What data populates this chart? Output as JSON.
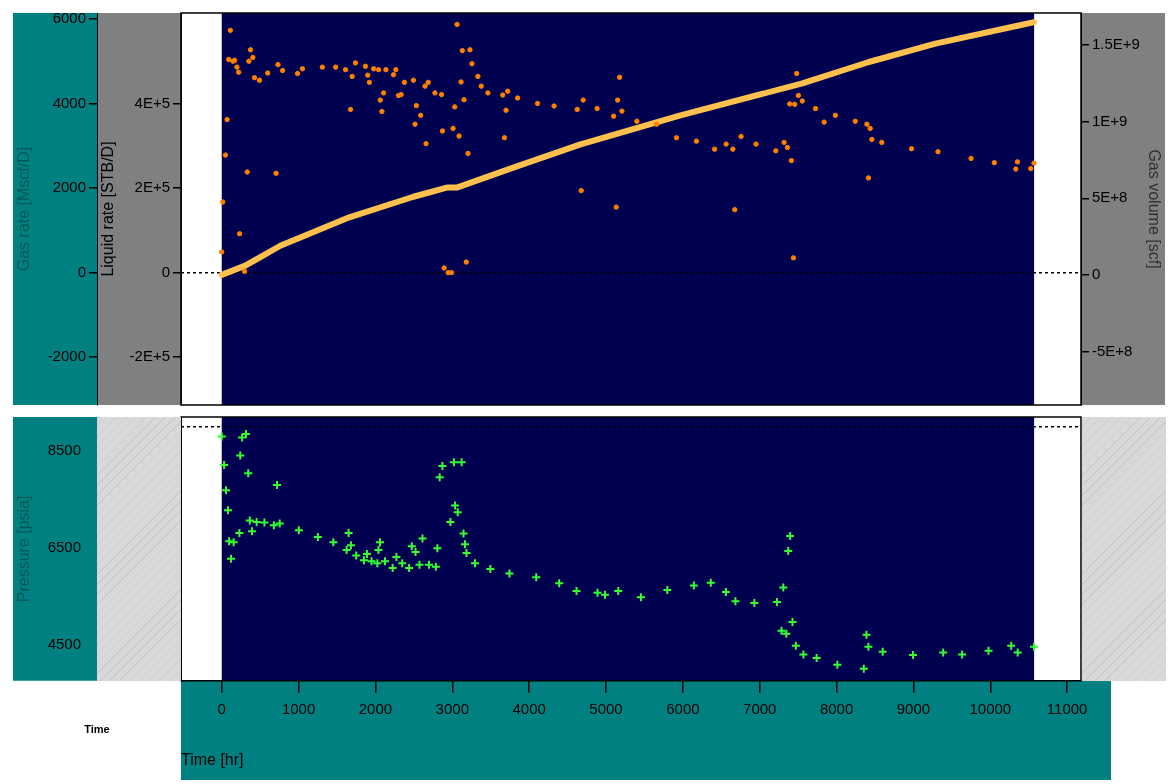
{
  "chart_data": [
    {
      "type": "scatter",
      "xlim": [
        -530,
        11180
      ],
      "ylim": [
        -3130,
        6140
      ],
      "yticks": [
        -2000,
        0,
        2000,
        4000,
        6000
      ],
      "ylabel": "Gas rate [Mscf/D]",
      "y3lim": [
        -313000,
        614000
      ],
      "y3ticks": [
        {
          "value": -200000,
          "label": "-2E+5"
        },
        0,
        {
          "value": 200000,
          "label": "2E+5"
        },
        {
          "value": 400000,
          "label": "4E+5"
        }
      ],
      "y3label": "Liquid rate [STB/D]",
      "y2lim": [
        -850000000,
        1710000000
      ],
      "y2ticks": [
        {
          "value": -500000000,
          "label": "-5E+8"
        },
        0,
        {
          "value": 500000000,
          "label": "5E+8"
        },
        {
          "value": 1000000000,
          "label": "1E+9"
        },
        {
          "value": 1500000000,
          "label": "1.5E+9"
        }
      ],
      "y2label": "Gas volume [scf]",
      "tick_labels": "y",
      "grid": false,
      "legend": false,
      "bands": [
        {
          "axis": "x",
          "from": 0,
          "to": 10570,
          "color": "#000050"
        }
      ],
      "ref_lines": [
        {
          "axis": "y",
          "value": 0,
          "color": "#000000",
          "line_style": "dotted"
        }
      ],
      "series": [
        {
          "type": "scatter",
          "marker": "circle",
          "color": "#ff8000",
          "x": [
            0,
            13,
            48,
            70,
            90,
            112,
            146,
            168,
            198,
            220,
            233,
            297,
            332,
            353,
            375,
            405,
            426,
            491,
            598,
            707,
            732,
            792,
            986,
            1050,
            1309,
            1482,
            1611,
            1676,
            1697,
            1740,
            1870,
            1899,
            1921,
            1977,
            2041,
            2063,
            2084,
            2106,
            2136,
            2235,
            2265,
            2300,
            2335,
            2377,
            2494,
            2515,
            2532,
            2588,
            2645,
            2658,
            2687,
            2774,
            2860,
            2872,
            2894,
            2946,
            2989,
            3010,
            3032,
            3062,
            3088,
            3114,
            3131,
            3152,
            3182,
            3204,
            3230,
            3256,
            3333,
            3376,
            3463,
            3656,
            3678,
            3699,
            3721,
            3850,
            4109,
            4324,
            4625,
            4677,
            4703,
            4884,
            5099,
            5133,
            5151,
            5177,
            5207,
            5401,
            5659,
            5917,
            6176,
            6413,
            6563,
            6650,
            6675,
            6757,
            6951,
            7209,
            7317,
            7360,
            7390,
            7412,
            7438,
            7455,
            7481,
            7503,
            7554,
            7726,
            7838,
            7984,
            8243,
            8394,
            8415,
            8437,
            8459,
            8588,
            8975,
            9319,
            9750,
            10052,
            10332,
            10353,
            10526,
            10568
          ],
          "values": [
            490,
            1670,
            2780,
            3620,
            5040,
            5730,
            5000,
            5020,
            4860,
            4740,
            920,
            30,
            2380,
            5000,
            5270,
            5090,
            4610,
            4550,
            4720,
            2350,
            4920,
            4780,
            4710,
            4820,
            4860,
            4860,
            4800,
            3860,
            4640,
            4960,
            4880,
            4670,
            4500,
            4820,
            4800,
            4080,
            3810,
            4250,
            4800,
            4680,
            4800,
            4190,
            4210,
            4500,
            4550,
            3510,
            3950,
            3720,
            4410,
            3050,
            4500,
            4250,
            4210,
            3350,
            110,
            0,
            0,
            3410,
            3920,
            5870,
            3230,
            4510,
            5250,
            4090,
            250,
            2820,
            5270,
            4940,
            4640,
            4410,
            4250,
            4200,
            3190,
            3840,
            4290,
            4130,
            4000,
            3940,
            3860,
            1940,
            4080,
            3880,
            3700,
            1550,
            4080,
            4620,
            3820,
            3580,
            3510,
            3190,
            3110,
            2920,
            3040,
            2920,
            1490,
            3220,
            3040,
            2880,
            3080,
            2960,
            3990,
            2650,
            350,
            3980,
            4710,
            4190,
            4060,
            3880,
            3560,
            3720,
            3580,
            3510,
            2240,
            3410,
            3150,
            3080,
            2930,
            2860,
            2700,
            2600,
            2450,
            2620,
            2460,
            2590
          ]
        },
        {
          "type": "line",
          "axis": "y2",
          "color": "#ffc04d",
          "x": [
            0,
            306,
            762,
            1629,
            2494,
            2928,
            3058,
            3793,
            4658,
            5957,
            7554,
            8420,
            9286,
            10568
          ],
          "values": [
            0,
            60000000,
            190000000,
            370000000,
            510000000,
            570000000,
            570000000,
            700000000,
            850000000,
            1040000000,
            1250000000,
            1390000000,
            1510000000,
            1650000000
          ]
        }
      ]
    },
    {
      "type": "scatter",
      "xlim": [
        -530,
        11180
      ],
      "xticks": [
        0,
        1000,
        2000,
        3000,
        4000,
        5000,
        6000,
        7000,
        8000,
        9000,
        10000,
        11000
      ],
      "xlabel": "Time [hr]",
      "ylim": [
        3770,
        9200
      ],
      "yticks": [
        4500,
        6500,
        8500
      ],
      "ylabel": "Pressure [psia]",
      "grid": false,
      "legend": false,
      "marker": "cross",
      "annotations": [
        "Time"
      ],
      "bands": [
        {
          "axis": "x",
          "from": 0,
          "to": 10570,
          "color": "#000050"
        }
      ],
      "ref_lines": [
        {
          "axis": "y",
          "value": 9000,
          "color": "#000000",
          "line_style": "dotted"
        }
      ],
      "series": [
        {
          "color": "#33ff33",
          "x": [
            0,
            31,
            56,
            81,
            96,
            121,
            155,
            230,
            241,
            265,
            315,
            345,
            365,
            395,
            454,
            555,
            678,
            719,
            754,
            1003,
            1251,
            1452,
            1625,
            1651,
            1681,
            1750,
            1850,
            1889,
            1949,
            2025,
            2039,
            2059,
            2124,
            2224,
            2273,
            2348,
            2438,
            2473,
            2522,
            2573,
            2612,
            2697,
            2786,
            2806,
            2836,
            2871,
            2975,
            3021,
            3036,
            3070,
            3121,
            3146,
            3165,
            3185,
            3296,
            3495,
            3743,
            4092,
            4391,
            4616,
            4889,
            4987,
            5159,
            5454,
            5798,
            6143,
            6363,
            6560,
            6684,
            6930,
            7224,
            7283,
            7307,
            7346,
            7371,
            7396,
            7426,
            7470,
            7568,
            7740,
            8010,
            8354,
            8389,
            8414,
            8600,
            8994,
            9387,
            9633,
            9977,
            10272,
            10356,
            10568
          ],
          "values": [
            8800,
            8210,
            7690,
            7280,
            6640,
            6280,
            6620,
            6810,
            8410,
            8780,
            8850,
            8040,
            7070,
            6850,
            7040,
            7030,
            6970,
            7800,
            7010,
            6870,
            6730,
            6620,
            6460,
            6810,
            6560,
            6350,
            6250,
            6380,
            6230,
            6190,
            6460,
            6620,
            6230,
            6090,
            6320,
            6190,
            6090,
            6540,
            6420,
            6160,
            6700,
            6160,
            6120,
            6500,
            7960,
            8190,
            7040,
            8270,
            7380,
            7240,
            8270,
            6800,
            6580,
            6400,
            6190,
            6070,
            5980,
            5900,
            5780,
            5620,
            5580,
            5540,
            5620,
            5490,
            5640,
            5730,
            5790,
            5600,
            5410,
            5370,
            5390,
            4800,
            5690,
            4740,
            6440,
            6750,
            4980,
            4490,
            4310,
            4240,
            4100,
            4020,
            4720,
            4470,
            4370,
            4300,
            4350,
            4310,
            4390,
            4490,
            4350,
            4470
          ]
        }
      ]
    }
  ]
}
